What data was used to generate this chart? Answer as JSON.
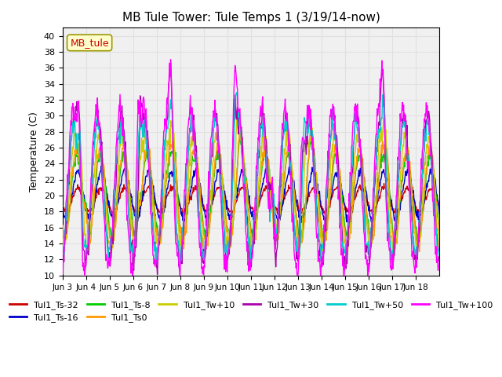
{
  "title": "MB Tule Tower: Tule Temps 1 (3/19/14-now)",
  "xlabel": "",
  "ylabel": "Temperature (C)",
  "ylim": [
    10,
    41
  ],
  "yticks": [
    10,
    12,
    14,
    16,
    18,
    20,
    22,
    24,
    26,
    28,
    30,
    32,
    34,
    36,
    38,
    40
  ],
  "x_labels": [
    "Jun 3",
    "Jun 4",
    "Jun 5",
    "Jun 6",
    "Jun 7",
    "Jun 8",
    "Jun 9",
    "Jun 10",
    "Jun 11",
    "Jun 12",
    "Jun 13",
    "Jun 14",
    "Jun 15",
    "Jun 16",
    "Jun 17",
    "Jun 18"
  ],
  "legend_label": "MB_tule",
  "series_colors": {
    "Tul1_Ts-32": "#cc0000",
    "Tul1_Ts-16": "#0000cc",
    "Tul1_Ts-8": "#00cc00",
    "Tul1_Ts0": "#ff9900",
    "Tul1_Tw+10": "#cccc00",
    "Tul1_Tw+30": "#aa00aa",
    "Tul1_Tw+50": "#00cccc",
    "Tul1_Tw+100": "#ff00ff"
  },
  "background_color": "#ffffff",
  "grid_color": "#e0e0e0"
}
